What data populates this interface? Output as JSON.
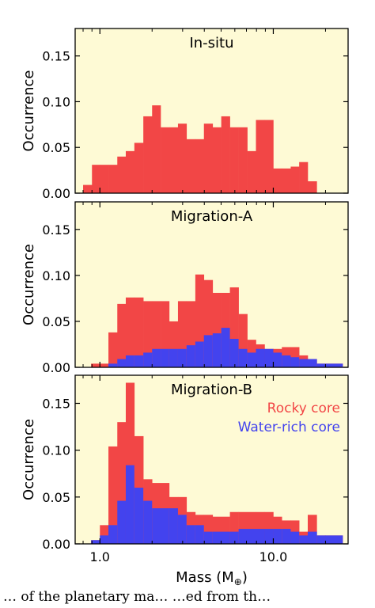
{
  "caption_text": "… of the planetary ma… …ed from th…",
  "chart_data": {
    "type": "histogram",
    "xlabel": "Mass (M",
    "xlabel_subscript": "⊕",
    "xlabel_suffix": ")",
    "ylabel": "Occurrence",
    "xscale": "log",
    "xlim": [
      0.72,
      27
    ],
    "ylim": [
      0,
      0.18
    ],
    "xticks": [
      {
        "value": 1.0,
        "label": "1.0"
      },
      {
        "value": 10.0,
        "label": "10.0"
      }
    ],
    "yticks": [
      {
        "value": 0.0,
        "label": "0.00"
      },
      {
        "value": 0.05,
        "label": "0.05"
      },
      {
        "value": 0.1,
        "label": "0.10"
      },
      {
        "value": 0.15,
        "label": "0.15"
      }
    ],
    "background_color": "#fefad5",
    "legend_location": "upper right, bottom panel",
    "series_colors": {
      "rocky": "#f24646",
      "water": "#4343ee"
    },
    "panels": [
      {
        "title": "In-situ",
        "bins": [
          {
            "x0": 0.8,
            "x1": 0.9,
            "rocky": 0.009,
            "water": 0
          },
          {
            "x0": 0.9,
            "x1": 1.0,
            "rocky": 0.031,
            "water": 0
          },
          {
            "x0": 1.0,
            "x1": 1.12,
            "rocky": 0.031,
            "water": 0
          },
          {
            "x0": 1.12,
            "x1": 1.26,
            "rocky": 0.031,
            "water": 0
          },
          {
            "x0": 1.26,
            "x1": 1.41,
            "rocky": 0.04,
            "water": 0
          },
          {
            "x0": 1.41,
            "x1": 1.58,
            "rocky": 0.046,
            "water": 0
          },
          {
            "x0": 1.58,
            "x1": 1.78,
            "rocky": 0.055,
            "water": 0
          },
          {
            "x0": 1.78,
            "x1": 2.0,
            "rocky": 0.084,
            "water": 0
          },
          {
            "x0": 2.0,
            "x1": 2.24,
            "rocky": 0.096,
            "water": 0
          },
          {
            "x0": 2.24,
            "x1": 2.51,
            "rocky": 0.072,
            "water": 0
          },
          {
            "x0": 2.51,
            "x1": 2.82,
            "rocky": 0.072,
            "water": 0
          },
          {
            "x0": 2.82,
            "x1": 3.16,
            "rocky": 0.076,
            "water": 0
          },
          {
            "x0": 3.16,
            "x1": 3.55,
            "rocky": 0.059,
            "water": 0
          },
          {
            "x0": 3.55,
            "x1": 3.98,
            "rocky": 0.059,
            "water": 0
          },
          {
            "x0": 3.98,
            "x1": 4.47,
            "rocky": 0.076,
            "water": 0
          },
          {
            "x0": 4.47,
            "x1": 5.01,
            "rocky": 0.072,
            "water": 0
          },
          {
            "x0": 5.01,
            "x1": 5.62,
            "rocky": 0.084,
            "water": 0
          },
          {
            "x0": 5.62,
            "x1": 6.31,
            "rocky": 0.072,
            "water": 0
          },
          {
            "x0": 6.31,
            "x1": 7.08,
            "rocky": 0.072,
            "water": 0
          },
          {
            "x0": 7.08,
            "x1": 7.94,
            "rocky": 0.046,
            "water": 0
          },
          {
            "x0": 7.94,
            "x1": 8.91,
            "rocky": 0.08,
            "water": 0
          },
          {
            "x0": 8.91,
            "x1": 10.0,
            "rocky": 0.08,
            "water": 0
          },
          {
            "x0": 10.0,
            "x1": 11.2,
            "rocky": 0.027,
            "water": 0
          },
          {
            "x0": 11.2,
            "x1": 12.6,
            "rocky": 0.027,
            "water": 0
          },
          {
            "x0": 12.6,
            "x1": 14.1,
            "rocky": 0.029,
            "water": 0
          },
          {
            "x0": 14.1,
            "x1": 15.8,
            "rocky": 0.034,
            "water": 0
          },
          {
            "x0": 15.8,
            "x1": 17.8,
            "rocky": 0.013,
            "water": 0
          }
        ]
      },
      {
        "title": "Migration-A",
        "bins": [
          {
            "x0": 0.89,
            "x1": 1.12,
            "rocky": 0.004,
            "water": 0.0
          },
          {
            "x0": 1.12,
            "x1": 1.26,
            "rocky": 0.038,
            "water": 0.004
          },
          {
            "x0": 1.26,
            "x1": 1.41,
            "rocky": 0.069,
            "water": 0.009
          },
          {
            "x0": 1.41,
            "x1": 1.58,
            "rocky": 0.076,
            "water": 0.013
          },
          {
            "x0": 1.58,
            "x1": 1.78,
            "rocky": 0.076,
            "water": 0.013
          },
          {
            "x0": 1.78,
            "x1": 2.0,
            "rocky": 0.072,
            "water": 0.016
          },
          {
            "x0": 2.0,
            "x1": 2.24,
            "rocky": 0.072,
            "water": 0.02
          },
          {
            "x0": 2.24,
            "x1": 2.51,
            "rocky": 0.072,
            "water": 0.02
          },
          {
            "x0": 2.51,
            "x1": 2.82,
            "rocky": 0.05,
            "water": 0.02
          },
          {
            "x0": 2.82,
            "x1": 3.16,
            "rocky": 0.072,
            "water": 0.02
          },
          {
            "x0": 3.16,
            "x1": 3.55,
            "rocky": 0.072,
            "water": 0.024
          },
          {
            "x0": 3.55,
            "x1": 3.98,
            "rocky": 0.101,
            "water": 0.028
          },
          {
            "x0": 3.98,
            "x1": 4.47,
            "rocky": 0.095,
            "water": 0.035
          },
          {
            "x0": 4.47,
            "x1": 5.01,
            "rocky": 0.081,
            "water": 0.037
          },
          {
            "x0": 5.01,
            "x1": 5.62,
            "rocky": 0.081,
            "water": 0.043
          },
          {
            "x0": 5.62,
            "x1": 6.31,
            "rocky": 0.087,
            "water": 0.031
          },
          {
            "x0": 6.31,
            "x1": 7.08,
            "rocky": 0.058,
            "water": 0.02
          },
          {
            "x0": 7.08,
            "x1": 7.94,
            "rocky": 0.03,
            "water": 0.016
          },
          {
            "x0": 7.94,
            "x1": 8.91,
            "rocky": 0.025,
            "water": 0.02
          },
          {
            "x0": 8.91,
            "x1": 10.0,
            "rocky": 0.02,
            "water": 0.02
          },
          {
            "x0": 10.0,
            "x1": 11.2,
            "rocky": 0.02,
            "water": 0.016
          },
          {
            "x0": 11.2,
            "x1": 12.6,
            "rocky": 0.022,
            "water": 0.013
          },
          {
            "x0": 12.6,
            "x1": 14.1,
            "rocky": 0.022,
            "water": 0.011
          },
          {
            "x0": 14.1,
            "x1": 15.8,
            "rocky": 0.013,
            "water": 0.009
          },
          {
            "x0": 15.8,
            "x1": 17.8,
            "rocky": 0.009,
            "water": 0.009
          },
          {
            "x0": 17.8,
            "x1": 19.9,
            "rocky": 0.004,
            "water": 0.004
          },
          {
            "x0": 19.9,
            "x1": 25.1,
            "rocky": 0.004,
            "water": 0.004
          }
        ]
      },
      {
        "title": "Migration-B",
        "bins": [
          {
            "x0": 0.89,
            "x1": 1.0,
            "rocky": 0.004,
            "water": 0.004
          },
          {
            "x0": 1.0,
            "x1": 1.12,
            "rocky": 0.02,
            "water": 0.009
          },
          {
            "x0": 1.12,
            "x1": 1.26,
            "rocky": 0.104,
            "water": 0.02
          },
          {
            "x0": 1.26,
            "x1": 1.41,
            "rocky": 0.13,
            "water": 0.046
          },
          {
            "x0": 1.41,
            "x1": 1.58,
            "rocky": 0.172,
            "water": 0.084
          },
          {
            "x0": 1.58,
            "x1": 1.78,
            "rocky": 0.115,
            "water": 0.06
          },
          {
            "x0": 1.78,
            "x1": 2.0,
            "rocky": 0.069,
            "water": 0.046
          },
          {
            "x0": 2.0,
            "x1": 2.51,
            "rocky": 0.065,
            "water": 0.038
          },
          {
            "x0": 2.51,
            "x1": 2.82,
            "rocky": 0.05,
            "water": 0.038
          },
          {
            "x0": 2.82,
            "x1": 3.16,
            "rocky": 0.05,
            "water": 0.031
          },
          {
            "x0": 3.16,
            "x1": 3.55,
            "rocky": 0.034,
            "water": 0.02
          },
          {
            "x0": 3.55,
            "x1": 3.98,
            "rocky": 0.031,
            "water": 0.02
          },
          {
            "x0": 3.98,
            "x1": 4.47,
            "rocky": 0.031,
            "water": 0.013
          },
          {
            "x0": 4.47,
            "x1": 5.62,
            "rocky": 0.029,
            "water": 0.013
          },
          {
            "x0": 5.62,
            "x1": 6.31,
            "rocky": 0.034,
            "water": 0.013
          },
          {
            "x0": 6.31,
            "x1": 7.94,
            "rocky": 0.034,
            "water": 0.016
          },
          {
            "x0": 7.94,
            "x1": 8.91,
            "rocky": 0.034,
            "water": 0.016
          },
          {
            "x0": 8.91,
            "x1": 10.0,
            "rocky": 0.034,
            "water": 0.016
          },
          {
            "x0": 10.0,
            "x1": 11.2,
            "rocky": 0.029,
            "water": 0.016
          },
          {
            "x0": 11.2,
            "x1": 12.6,
            "rocky": 0.025,
            "water": 0.016
          },
          {
            "x0": 12.6,
            "x1": 14.1,
            "rocky": 0.025,
            "water": 0.013
          },
          {
            "x0": 14.1,
            "x1": 15.8,
            "rocky": 0.013,
            "water": 0.009
          },
          {
            "x0": 15.8,
            "x1": 17.8,
            "rocky": 0.031,
            "water": 0.013
          },
          {
            "x0": 17.8,
            "x1": 19.9,
            "rocky": 0.009,
            "water": 0.009
          },
          {
            "x0": 19.9,
            "x1": 25.1,
            "rocky": 0.009,
            "water": 0.009
          }
        ]
      }
    ],
    "legend": [
      {
        "label": "Rocky core",
        "color": "#f24646"
      },
      {
        "label": "Water-rich core",
        "color": "#4343ee"
      }
    ]
  }
}
